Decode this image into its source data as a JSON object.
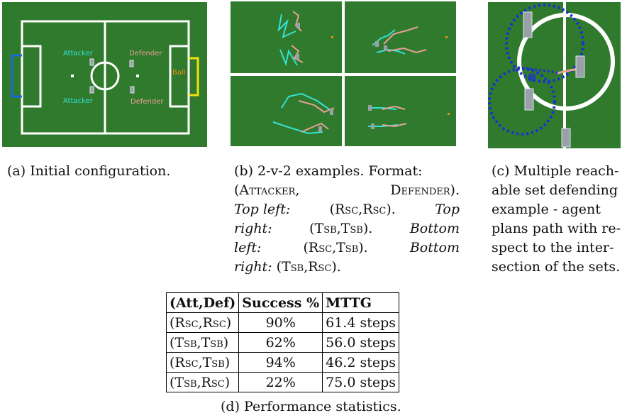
{
  "panel_a": {
    "labels": {
      "attacker_top": "Attacker",
      "attacker_bottom": "Attacker",
      "defender_top": "Defender",
      "defender_bottom": "Defender",
      "ball": "Ball"
    },
    "colors": {
      "field": "#2f7a2c",
      "attacker": "#36e2d6",
      "defender": "#e8a098",
      "ball": "#f08a18",
      "left_goal": "#1a6ad8",
      "right_goal": "#f2e010"
    }
  },
  "captions": {
    "a": "(a) Initial configuration.",
    "b": {
      "line1": "(b) 2-v-2 examples. Format:",
      "attacker": "Attacker",
      "defender": "Defender",
      "top_left_label": "Top left:",
      "top_left_value": "(Rsc,Rsc).",
      "top_right_label": "Top right:",
      "top_right_value": "(Tsb,Tsb).",
      "bottom_left_label": "Bottom left:",
      "bottom_left_value": "(Rsc,Tsb).",
      "bottom_right_label": "Bottom right:",
      "bottom_right_value": "(Tsb,Rsc)."
    },
    "c": {
      "line1": "(c) Multiple reach-",
      "line2": "able set defending",
      "line3": "example - agent",
      "line4": "plans path with re-",
      "line5": "spect to the inter-",
      "line6": "section of the sets."
    },
    "d": "(d) Performance statistics."
  },
  "table": {
    "headers": [
      "(Att,Def)",
      "Success %",
      "MTTG"
    ],
    "rows": [
      [
        "(Rsc,Rsc)",
        "90%",
        "61.4 steps"
      ],
      [
        "(Tsb,Tsb)",
        "62%",
        "56.0 steps"
      ],
      [
        "(Rsc,Tsb)",
        "94%",
        "46.2 steps"
      ],
      [
        "(Tsb,Rsc)",
        "22%",
        "75.0 steps"
      ]
    ]
  }
}
